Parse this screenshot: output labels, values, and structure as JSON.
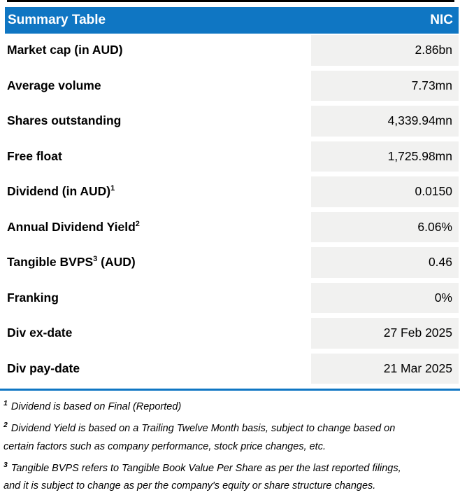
{
  "header": {
    "title": "Summary Table",
    "ticker": "NIC"
  },
  "colors": {
    "header_bg": "#0F76C3",
    "header_text": "#FFFFFF",
    "value_cell_bg": "#F1F1F0",
    "divider": "#0F76C3",
    "top_rule": "#000000",
    "text": "#000000"
  },
  "table": {
    "rows": [
      {
        "label": "Market cap (in AUD)",
        "sup": "",
        "label_suffix": "",
        "value": "2.86bn"
      },
      {
        "label": "Average volume",
        "sup": "",
        "label_suffix": "",
        "value": "7.73mn"
      },
      {
        "label": "Shares outstanding",
        "sup": "",
        "label_suffix": "",
        "value": "4,339.94mn"
      },
      {
        "label": "Free float",
        "sup": "",
        "label_suffix": "",
        "value": "1,725.98mn"
      },
      {
        "label": "Dividend (in AUD)",
        "sup": "1",
        "label_suffix": "",
        "value": "0.0150"
      },
      {
        "label": "Annual Dividend Yield",
        "sup": "2",
        "label_suffix": "",
        "value": "6.06%"
      },
      {
        "label": "Tangible BVPS",
        "sup": "3",
        "label_suffix": " (AUD)",
        "value": "0.46"
      },
      {
        "label": "Franking",
        "sup": "",
        "label_suffix": "",
        "value": "0%"
      },
      {
        "label": "Div ex-date",
        "sup": "",
        "label_suffix": "",
        "value": "27 Feb 2025"
      },
      {
        "label": "Div pay-date",
        "sup": "",
        "label_suffix": "",
        "value": "21 Mar 2025"
      }
    ]
  },
  "footnotes": [
    {
      "sup": "1",
      "lines": [
        "Dividend is based on Final (Reported)"
      ]
    },
    {
      "sup": "2",
      "lines": [
        "Dividend Yield is based on a Trailing Twelve Month basis, subject to change based on",
        "certain factors such as company performance, stock price changes, etc."
      ]
    },
    {
      "sup": "3",
      "lines": [
        "Tangible BVPS refers to Tangible Book Value Per Share as per the last reported filings,",
        "and it is subject to change as per the company's equity or share structure changes."
      ]
    }
  ]
}
